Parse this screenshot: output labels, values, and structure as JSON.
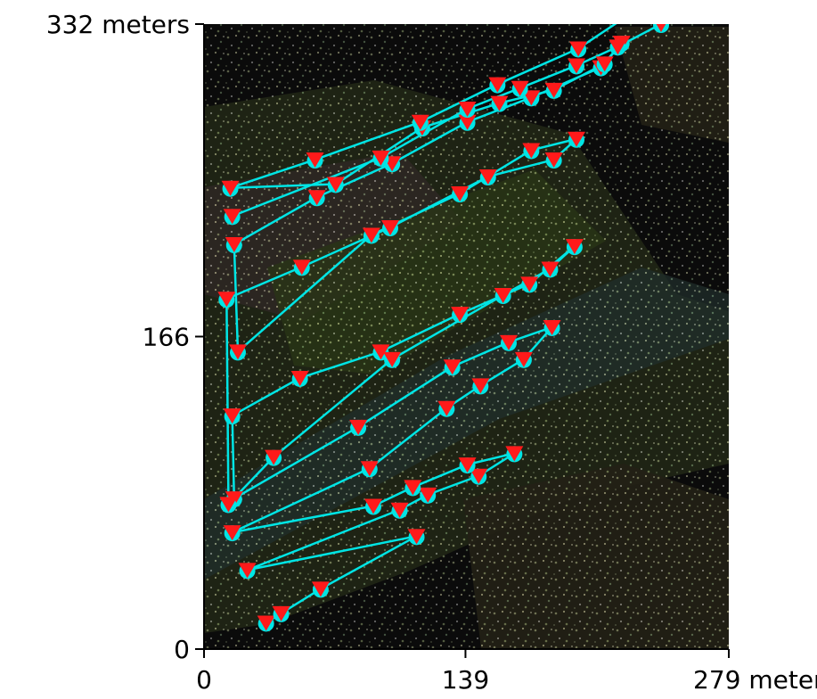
{
  "chart_data": {
    "type": "scatter",
    "title": "",
    "xlabel": "",
    "ylabel": "",
    "xlim": [
      0,
      279
    ],
    "ylim": [
      0,
      332
    ],
    "x_ticks": [
      {
        "value": 0,
        "label": "0"
      },
      {
        "value": 139,
        "label": "139"
      },
      {
        "value": 279,
        "label": "279 meters"
      }
    ],
    "y_ticks": [
      {
        "value": 0,
        "label": "0"
      },
      {
        "value": 166,
        "label": "166"
      },
      {
        "value": 332,
        "label": "332 meters"
      }
    ],
    "grid": false,
    "legend": "none",
    "background": "aerial orthophoto point cloud",
    "colors": {
      "path": "#00e5e5",
      "marker_fill": "#ff1a1a",
      "marker_accent": "#00e5e5",
      "plot_background": "#0b0b0b"
    },
    "series": [
      {
        "marker": "triangle-down",
        "connect": true,
        "x": [
          33,
          41,
          62,
          113,
          23,
          104,
          119,
          146,
          165,
          140,
          111,
          90,
          15,
          88,
          129,
          147,
          170,
          185,
          162,
          132,
          82,
          16,
          15,
          51,
          94,
          136,
          173,
          197,
          184,
          159,
          100,
          37,
          13,
          12,
          52,
          99,
          151,
          186,
          198,
          174,
          136,
          89,
          18,
          16,
          60,
          100,
          140,
          174,
          211,
          222,
          213,
          186,
          157,
          116,
          70,
          14,
          59,
          115,
          156,
          199,
          235,
          243,
          220,
          198,
          168,
          140,
          94,
          15
        ],
        "y": [
          14,
          19,
          32,
          60,
          42,
          74,
          82,
          92,
          104,
          98,
          86,
          76,
          62,
          96,
          128,
          140,
          154,
          171,
          163,
          150,
          118,
          80,
          124,
          144,
          158,
          178,
          194,
          214,
          202,
          188,
          154,
          102,
          77,
          186,
          203,
          224,
          251,
          260,
          271,
          265,
          242,
          220,
          158,
          215,
          240,
          258,
          280,
          293,
          309,
          322,
          311,
          297,
          290,
          277,
          247,
          245,
          260,
          280,
          300,
          319,
          343,
          332,
          320,
          310,
          298,
          287,
          261,
          230
        ]
      }
    ]
  }
}
